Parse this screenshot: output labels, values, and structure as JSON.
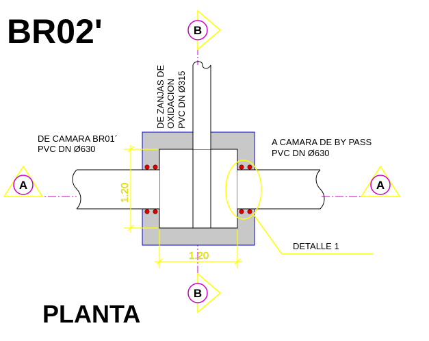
{
  "drawing": {
    "title": "BR02'",
    "view_label": "PLANTA"
  },
  "labels": {
    "inlet_left": {
      "line1": "DE CAMARA BR01´",
      "line2": "PVC DN Ø630"
    },
    "outlet_right": {
      "line1": "A CAMARA DE BY PASS",
      "line2": "PVC DN Ø630"
    },
    "inlet_top": {
      "line1": "DE ZANJAS DE",
      "line2": "OXIDACION",
      "line3": "PVC DN Ø315"
    },
    "detail": "DETALLE 1"
  },
  "dimensions": {
    "horizontal": "1.20",
    "vertical": "1.20"
  },
  "section_markers": {
    "top": "B",
    "bottom": "B",
    "left": "A",
    "right": "A"
  },
  "colors": {
    "wall_fill": "#c8c8c8",
    "outline": "#0000cc",
    "dimension": "#ffff00",
    "section_arrow": "#ffff00",
    "section_circle": "#cc00cc",
    "center_line": "#cc00cc",
    "seal_dot": "#dd0000"
  }
}
